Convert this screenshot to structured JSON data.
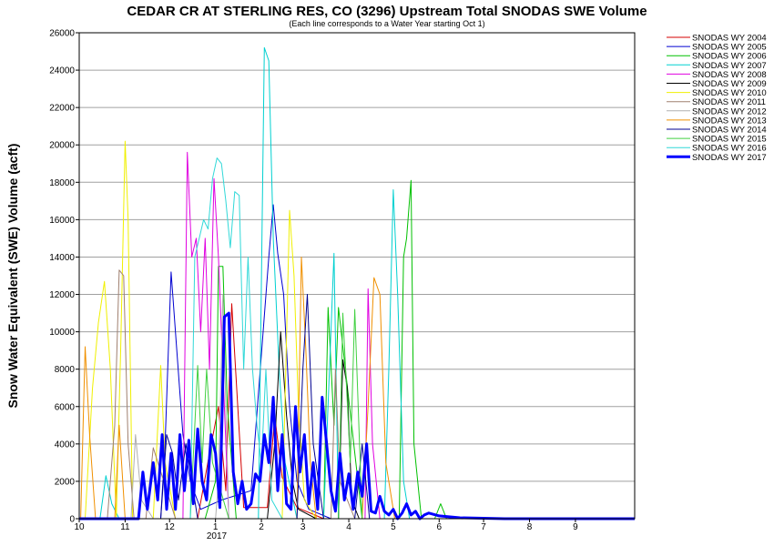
{
  "chart_data": {
    "type": "line",
    "title": "CEDAR CR AT STERLING RES, CO (3296) Upstream Total SNODAS SWE Volume",
    "subtitle": "(Each line corresponds to a Water Year starting Oct 1)",
    "ylabel": "Snow Water Equivalent (SWE) Volume (acft)",
    "xlabel": "",
    "ylim": [
      0,
      26000
    ],
    "yticks": [
      0,
      2000,
      4000,
      6000,
      8000,
      10000,
      12000,
      14000,
      16000,
      18000,
      20000,
      22000,
      24000,
      26000
    ],
    "xlim": [
      "2016-10-01",
      "2017-10-11"
    ],
    "xticks": [
      {
        "date": "2016-10-01",
        "label": "10"
      },
      {
        "date": "2016-11-01",
        "label": "11"
      },
      {
        "date": "2016-12-01",
        "label": "12"
      },
      {
        "date": "2017-01-01",
        "label": "1"
      },
      {
        "date": "2017-02-01",
        "label": "2"
      },
      {
        "date": "2017-03-01",
        "label": "3"
      },
      {
        "date": "2017-04-01",
        "label": "4"
      },
      {
        "date": "2017-05-01",
        "label": "5"
      },
      {
        "date": "2017-06-01",
        "label": "6"
      },
      {
        "date": "2017-07-01",
        "label": "7"
      },
      {
        "date": "2017-08-01",
        "label": "8"
      },
      {
        "date": "2017-09-01",
        "label": "9"
      }
    ],
    "year_label": "2017",
    "grid": "horizontal",
    "legend": "right",
    "series": [
      {
        "name": "SNODAS WY 2004",
        "color": "#d40000",
        "x": [
          "2016-10-01",
          "2016-12-20",
          "2016-12-28",
          "2017-01-03",
          "2017-01-08",
          "2017-01-12",
          "2017-01-20",
          "2017-02-05",
          "2017-02-10",
          "2017-02-15",
          "2017-02-25",
          "2017-03-15",
          "2017-04-05",
          "2017-04-30"
        ],
        "y": [
          0,
          0,
          3500,
          6000,
          1500,
          11500,
          600,
          600,
          5500,
          2200,
          600,
          0,
          0,
          0
        ]
      },
      {
        "name": "SNODAS WY 2005",
        "color": "#0000d0",
        "x": [
          "2016-10-01",
          "2016-11-25",
          "2016-11-28",
          "2016-12-02",
          "2016-12-10",
          "2016-12-15",
          "2016-12-22",
          "2017-01-05",
          "2017-01-25",
          "2017-02-06",
          "2017-02-09",
          "2017-02-12",
          "2017-02-16",
          "2017-02-20",
          "2017-02-25",
          "2017-03-05",
          "2017-03-20",
          "2017-04-01"
        ],
        "y": [
          0,
          0,
          4000,
          13200,
          4500,
          2000,
          500,
          1000,
          1500,
          14000,
          16800,
          14200,
          12000,
          6000,
          2000,
          500,
          0,
          0
        ]
      },
      {
        "name": "SNODAS WY 2006",
        "color": "#00c000",
        "x": [
          "2016-10-01",
          "2016-12-25",
          "2017-01-01",
          "2017-01-03",
          "2017-01-06",
          "2017-01-09",
          "2017-01-15",
          "2017-03-15",
          "2017-03-18",
          "2017-03-22",
          "2017-03-25",
          "2017-04-10",
          "2017-05-05",
          "2017-05-08",
          "2017-05-10",
          "2017-05-13",
          "2017-05-15",
          "2017-05-20",
          "2017-05-29",
          "2017-06-02",
          "2017-06-06",
          "2017-07-01"
        ],
        "y": [
          0,
          0,
          2000,
          13500,
          13500,
          6000,
          0,
          0,
          11300,
          5000,
          11300,
          0,
          0,
          14000,
          15000,
          18100,
          4000,
          0,
          0,
          800,
          0,
          0
        ]
      },
      {
        "name": "SNODAS WY 2007",
        "color": "#00d0d0",
        "x": [
          "2016-10-01",
          "2016-10-15",
          "2016-10-19",
          "2016-10-23",
          "2016-10-28",
          "2016-12-01",
          "2016-12-30",
          "2017-01-30",
          "2017-02-03",
          "2017-02-06",
          "2017-02-09",
          "2017-02-13",
          "2017-02-17",
          "2017-02-25",
          "2017-03-15",
          "2017-03-22",
          "2017-03-25",
          "2017-04-25",
          "2017-04-28",
          "2017-05-01",
          "2017-05-04",
          "2017-05-08",
          "2017-05-12"
        ],
        "y": [
          0,
          0,
          2300,
          800,
          0,
          0,
          0,
          0,
          25200,
          24500,
          15000,
          8000,
          3000,
          0,
          0,
          14200,
          0,
          0,
          8000,
          17600,
          12000,
          2000,
          0
        ]
      },
      {
        "name": "SNODAS WY 2008",
        "color": "#e000e0",
        "x": [
          "2016-10-01",
          "2016-12-10",
          "2016-12-13",
          "2016-12-16",
          "2016-12-19",
          "2016-12-22",
          "2016-12-25",
          "2016-12-28",
          "2016-12-31",
          "2017-01-03",
          "2017-01-06",
          "2017-01-10",
          "2017-03-25",
          "2017-04-12",
          "2017-04-14",
          "2017-04-17",
          "2017-04-22",
          "2017-04-30"
        ],
        "y": [
          0,
          0,
          19600,
          14000,
          15000,
          10000,
          15000,
          8000,
          18200,
          14000,
          8000,
          0,
          0,
          0,
          12300,
          4000,
          0,
          0
        ]
      },
      {
        "name": "SNODAS WY 2009",
        "color": "#000000",
        "x": [
          "2016-10-01",
          "2017-02-05",
          "2017-02-10",
          "2017-02-14",
          "2017-02-18",
          "2017-02-22",
          "2017-02-26",
          "2017-03-10",
          "2017-03-25",
          "2017-03-28",
          "2017-03-31",
          "2017-04-03",
          "2017-04-08",
          "2017-05-01"
        ],
        "y": [
          0,
          0,
          4000,
          10000,
          5500,
          2000,
          500,
          0,
          0,
          8500,
          7000,
          1000,
          0,
          0
        ]
      },
      {
        "name": "SNODAS WY 2010",
        "color": "#f0f000",
        "x": [
          "2016-10-01",
          "2016-10-05",
          "2016-10-10",
          "2016-10-14",
          "2016-10-18",
          "2016-10-22",
          "2016-10-26",
          "2016-10-29",
          "2016-11-01",
          "2016-11-03",
          "2016-11-06",
          "2016-11-20",
          "2016-11-25",
          "2016-11-28",
          "2016-12-05",
          "2017-02-15",
          "2017-02-20",
          "2017-02-23",
          "2017-02-26",
          "2017-03-02",
          "2017-03-10"
        ],
        "y": [
          0,
          0,
          7000,
          10500,
          12700,
          8000,
          0,
          9000,
          20200,
          16000,
          0,
          0,
          8200,
          3000,
          0,
          0,
          16500,
          13000,
          6000,
          1000,
          0
        ]
      },
      {
        "name": "SNODAS WY 2011",
        "color": "#a08070",
        "x": [
          "2016-10-01",
          "2016-10-20",
          "2016-10-25",
          "2016-10-28",
          "2016-10-31",
          "2016-11-03",
          "2016-11-07",
          "2016-11-15",
          "2016-11-20",
          "2016-12-05",
          "2017-01-01",
          "2017-03-20",
          "2017-03-23",
          "2017-03-26",
          "2017-04-05"
        ],
        "y": [
          0,
          0,
          5000,
          13300,
          13000,
          4000,
          0,
          0,
          3800,
          0,
          0,
          0,
          8000,
          2000,
          0
        ]
      },
      {
        "name": "SNODAS WY 2012",
        "color": "#b0b0b0",
        "x": [
          "2016-10-01",
          "2016-11-05",
          "2016-11-08",
          "2016-11-12",
          "2016-11-20",
          "2016-12-01",
          "2017-01-01",
          "2017-01-03",
          "2017-01-06",
          "2017-01-10",
          "2017-02-01"
        ],
        "y": [
          0,
          0,
          4500,
          1000,
          0,
          0,
          0,
          2000,
          12000,
          0,
          0
        ]
      },
      {
        "name": "SNODAS WY 2013",
        "color": "#f09000",
        "x": [
          "2016-10-01",
          "2016-10-02",
          "2016-10-05",
          "2016-10-08",
          "2016-10-12",
          "2016-10-25",
          "2016-10-28",
          "2016-11-01",
          "2016-11-05",
          "2017-02-25",
          "2017-02-28",
          "2017-03-03",
          "2017-03-06",
          "2017-03-10",
          "2017-04-10",
          "2017-04-14",
          "2017-04-18",
          "2017-04-22",
          "2017-04-26",
          "2017-05-02"
        ],
        "y": [
          0,
          0,
          9200,
          4500,
          0,
          0,
          5000,
          0,
          0,
          0,
          14000,
          9000,
          3000,
          0,
          0,
          6000,
          12900,
          12000,
          3000,
          0
        ]
      },
      {
        "name": "SNODAS WY 2014",
        "color": "#000090",
        "x": [
          "2016-10-01",
          "2016-11-25",
          "2016-11-29",
          "2016-12-03",
          "2016-12-07",
          "2016-12-12",
          "2016-12-20",
          "2017-02-25",
          "2017-03-01",
          "2017-03-04",
          "2017-03-08",
          "2017-03-15",
          "2017-04-05",
          "2017-04-10",
          "2017-04-15"
        ],
        "y": [
          0,
          0,
          4500,
          3500,
          1000,
          4000,
          0,
          0,
          8000,
          12000,
          4000,
          0,
          0,
          4000,
          0
        ]
      },
      {
        "name": "SNODAS WY 2015",
        "color": "#40d040",
        "x": [
          "2016-10-01",
          "2016-12-15",
          "2016-12-20",
          "2016-12-23",
          "2016-12-26",
          "2016-12-30",
          "2017-01-10",
          "2017-03-25",
          "2017-03-28",
          "2017-04-02",
          "2017-04-05",
          "2017-04-10"
        ],
        "y": [
          0,
          0,
          8200,
          3000,
          8000,
          3000,
          0,
          0,
          11000,
          3000,
          11200,
          0
        ]
      },
      {
        "name": "SNODAS WY 2016",
        "color": "#30d8d8",
        "x": [
          "2016-10-01",
          "2016-12-15",
          "2016-12-18",
          "2016-12-21",
          "2016-12-24",
          "2016-12-27",
          "2016-12-30",
          "2017-01-02",
          "2017-01-05",
          "2017-01-08",
          "2017-01-11",
          "2017-01-14",
          "2017-01-17",
          "2017-01-20",
          "2017-01-23",
          "2017-01-26",
          "2017-01-29",
          "2017-02-01",
          "2017-02-04",
          "2017-02-08",
          "2017-02-15"
        ],
        "y": [
          0,
          0,
          14000,
          15000,
          16000,
          15500,
          18200,
          19300,
          19000,
          17000,
          14500,
          17500,
          17300,
          8000,
          14000,
          8000,
          5000,
          3000,
          8000,
          1000,
          0
        ]
      },
      {
        "name": "SNODAS WY 2017",
        "color": "#0000ff",
        "bold": true,
        "x": [
          "2016-10-01",
          "2016-11-10",
          "2016-11-13",
          "2016-11-16",
          "2016-11-20",
          "2016-11-23",
          "2016-11-26",
          "2016-11-29",
          "2016-12-02",
          "2016-12-05",
          "2016-12-08",
          "2016-12-11",
          "2016-12-14",
          "2016-12-17",
          "2016-12-20",
          "2016-12-23",
          "2016-12-26",
          "2016-12-29",
          "2017-01-01",
          "2017-01-04",
          "2017-01-07",
          "2017-01-10",
          "2017-01-13",
          "2017-01-16",
          "2017-01-19",
          "2017-01-22",
          "2017-01-25",
          "2017-01-28",
          "2017-01-31",
          "2017-02-03",
          "2017-02-06",
          "2017-02-09",
          "2017-02-12",
          "2017-02-15",
          "2017-02-18",
          "2017-02-21",
          "2017-02-24",
          "2017-02-27",
          "2017-03-02",
          "2017-03-05",
          "2017-03-08",
          "2017-03-11",
          "2017-03-14",
          "2017-03-17",
          "2017-03-20",
          "2017-03-23",
          "2017-03-26",
          "2017-03-29",
          "2017-04-01",
          "2017-04-04",
          "2017-04-07",
          "2017-04-10",
          "2017-04-13",
          "2017-04-16",
          "2017-04-19",
          "2017-04-22",
          "2017-04-25",
          "2017-04-28",
          "2017-05-01",
          "2017-05-04",
          "2017-05-07",
          "2017-05-10",
          "2017-05-13",
          "2017-05-16",
          "2017-05-19",
          "2017-05-22",
          "2017-05-25",
          "2017-06-01",
          "2017-06-15",
          "2017-07-15",
          "2017-08-15",
          "2017-09-15",
          "2017-10-11"
        ],
        "y": [
          0,
          0,
          2500,
          500,
          3000,
          1000,
          4500,
          500,
          3500,
          500,
          4500,
          1500,
          4200,
          800,
          4800,
          2000,
          1000,
          4500,
          3500,
          600,
          10800,
          11000,
          2500,
          800,
          2000,
          500,
          800,
          2400,
          2000,
          4500,
          3000,
          6500,
          1500,
          4500,
          800,
          500,
          6000,
          2500,
          4500,
          800,
          3000,
          500,
          6500,
          4000,
          1500,
          400,
          3500,
          1000,
          2400,
          500,
          2500,
          1200,
          4000,
          400,
          300,
          1200,
          400,
          200,
          500,
          0,
          300,
          800,
          200,
          400,
          0,
          200,
          300,
          150,
          50,
          0,
          0,
          0,
          0
        ]
      }
    ]
  }
}
